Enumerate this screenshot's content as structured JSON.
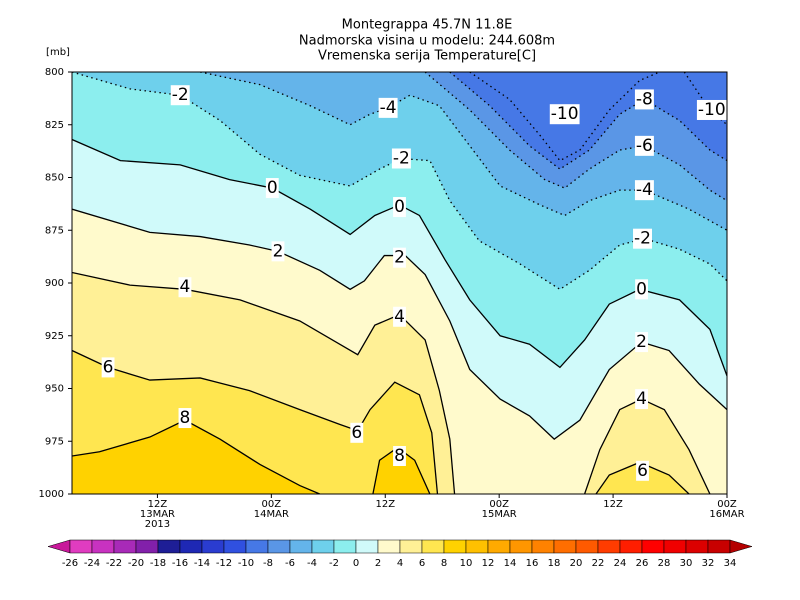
{
  "chart_data": {
    "type": "contour",
    "title": [
      "Montegrappa  45.7N 11.8E",
      "Nadmorska visina u modelu: 244.608m",
      "Vremenska serija Temperature[C]"
    ],
    "y_label": "[mb]",
    "xlim": [
      3,
      72
    ],
    "xticks": [
      {
        "value": 12,
        "label": [
          "12Z",
          "13MAR",
          "2013"
        ]
      },
      {
        "value": 24,
        "label": [
          "00Z",
          "14MAR"
        ]
      },
      {
        "value": 36,
        "label": [
          "12Z"
        ]
      },
      {
        "value": 48,
        "label": [
          "00Z",
          "15MAR"
        ]
      },
      {
        "value": 60,
        "label": [
          "12Z"
        ]
      },
      {
        "value": 72,
        "label": [
          "00Z",
          "16MAR"
        ]
      }
    ],
    "ylim": [
      1000,
      800
    ],
    "yticks": [
      800,
      825,
      850,
      875,
      900,
      925,
      950,
      975,
      1000
    ],
    "negative_contours_dotted": true,
    "contours": [
      {
        "level": -10,
        "segments": [
          [
            [
              44.9,
              800
            ],
            [
              49.1,
              813
            ],
            [
              52.3,
              830
            ],
            [
              54.4,
              842
            ],
            [
              56.5,
              837
            ],
            [
              59.6,
              818
            ],
            [
              62.8,
              804
            ],
            [
              64.9,
              800
            ]
          ],
          [
            [
              67.5,
              800
            ],
            [
              70.2,
              818
            ],
            [
              72,
              825
            ]
          ]
        ],
        "labels": [
          [
            54.9,
            820
          ],
          [
            70.4,
            818
          ]
        ]
      },
      {
        "level": -8,
        "segments": [
          [
            [
              42.8,
              800
            ],
            [
              47,
              816
            ],
            [
              51.2,
              835
            ],
            [
              54.4,
              846
            ],
            [
              57.5,
              837
            ],
            [
              60.7,
              820
            ],
            [
              63.3,
              813
            ],
            [
              67,
              823
            ],
            [
              70.2,
              837
            ],
            [
              72,
              842
            ]
          ]
        ],
        "labels": [
          [
            63.3,
            813
          ]
        ]
      },
      {
        "level": -6,
        "segments": [
          [
            [
              40.2,
              800
            ],
            [
              44.9,
              818
            ],
            [
              49.1,
              837
            ],
            [
              52.8,
              851
            ],
            [
              54.9,
              855
            ],
            [
              57.5,
              846
            ],
            [
              60.7,
              837
            ],
            [
              63.3,
              835
            ],
            [
              67,
              844
            ],
            [
              70.2,
              856
            ],
            [
              72,
              861
            ]
          ]
        ],
        "labels": [
          [
            63.3,
            835
          ]
        ]
      },
      {
        "level": -4,
        "segments": [
          [
            [
              16.5,
              800
            ],
            [
              22.8,
              806
            ],
            [
              28.1,
              816
            ],
            [
              32.3,
              825
            ],
            [
              34.4,
              820
            ],
            [
              36.3,
              817
            ],
            [
              38.6,
              811
            ],
            [
              41.7,
              816
            ],
            [
              44.9,
              835
            ],
            [
              48.1,
              854
            ],
            [
              52.3,
              863
            ],
            [
              54.9,
              868
            ],
            [
              57.5,
              861
            ],
            [
              60.7,
              856
            ],
            [
              63.3,
              856
            ],
            [
              68,
              865
            ],
            [
              72,
              875
            ]
          ]
        ],
        "labels": [
          [
            36.3,
            817
          ],
          [
            63.3,
            856
          ]
        ]
      },
      {
        "level": -2,
        "segments": [
          [
            [
              3,
              800
            ],
            [
              9.1,
              808
            ],
            [
              14.4,
              811
            ],
            [
              18.6,
              823
            ],
            [
              22.8,
              839
            ],
            [
              27,
              849
            ],
            [
              32.3,
              854
            ],
            [
              35.4,
              846
            ],
            [
              37.7,
              841
            ],
            [
              40.7,
              842
            ],
            [
              42.8,
              861
            ],
            [
              45.9,
              880
            ],
            [
              50.2,
              891
            ],
            [
              54.4,
              903
            ],
            [
              57.5,
              894
            ],
            [
              60.7,
              882
            ],
            [
              63.3,
              879
            ],
            [
              67,
              884
            ],
            [
              70.2,
              891
            ],
            [
              72,
              899
            ]
          ]
        ],
        "labels": [
          [
            14.4,
            811
          ],
          [
            37.7,
            841
          ],
          [
            63.1,
            879
          ]
        ]
      },
      {
        "level": 0,
        "segments": [
          [
            [
              3,
              832
            ],
            [
              8.1,
              842
            ],
            [
              14.4,
              844
            ],
            [
              19.6,
              851
            ],
            [
              24.1,
              855
            ],
            [
              28.1,
              865
            ],
            [
              32.3,
              877
            ],
            [
              34.9,
              868
            ],
            [
              37.5,
              863
            ],
            [
              39.6,
              868
            ],
            [
              42.3,
              889
            ],
            [
              44.9,
              908
            ],
            [
              48.1,
              925
            ],
            [
              51.2,
              929
            ],
            [
              54.4,
              940
            ],
            [
              57,
              927
            ],
            [
              59.6,
              910
            ],
            [
              62.8,
              903
            ],
            [
              67,
              908
            ],
            [
              70.2,
              922
            ],
            [
              72,
              944
            ]
          ]
        ],
        "labels": [
          [
            24.1,
            855
          ],
          [
            37.5,
            864
          ],
          [
            63,
            903
          ]
        ]
      },
      {
        "level": 2,
        "segments": [
          [
            [
              3,
              865
            ],
            [
              11.2,
              876
            ],
            [
              16.5,
              878
            ],
            [
              21.7,
              882
            ],
            [
              24.7,
              885
            ],
            [
              29.1,
              894
            ],
            [
              32.3,
              903
            ],
            [
              33.8,
              899
            ],
            [
              35.9,
              887
            ],
            [
              38.1,
              887
            ],
            [
              40.2,
              896
            ],
            [
              42.8,
              918
            ],
            [
              44.9,
              941
            ],
            [
              48.1,
              955
            ],
            [
              51.2,
              963
            ],
            [
              53.8,
              974
            ],
            [
              56.5,
              965
            ],
            [
              59.6,
              941
            ],
            [
              63,
              928
            ],
            [
              65.9,
              932
            ],
            [
              69.1,
              948
            ],
            [
              72,
              960
            ]
          ]
        ],
        "labels": [
          [
            24.7,
            885
          ],
          [
            37.5,
            888
          ],
          [
            63,
            928
          ]
        ]
      },
      {
        "level": 4,
        "segments": [
          [
            [
              3,
              895
            ],
            [
              9.1,
              901
            ],
            [
              14.9,
              903
            ],
            [
              20.7,
              908
            ],
            [
              27,
              918
            ],
            [
              31.2,
              929
            ],
            [
              33.1,
              934
            ],
            [
              34.9,
              920
            ],
            [
              37.5,
              915
            ],
            [
              40.2,
              927
            ],
            [
              41.7,
              951
            ],
            [
              42.8,
              974
            ],
            [
              43.3,
              1000
            ]
          ],
          [
            [
              57,
              1000
            ],
            [
              58.6,
              979
            ],
            [
              60.7,
              960
            ],
            [
              63,
              955
            ],
            [
              65.4,
              960
            ],
            [
              68,
              979
            ],
            [
              70.2,
              1000
            ]
          ]
        ],
        "labels": [
          [
            14.9,
            902
          ],
          [
            37.5,
            916
          ],
          [
            63,
            955
          ]
        ]
      },
      {
        "level": 6,
        "segments": [
          [
            [
              3,
              932
            ],
            [
              6.8,
              940
            ],
            [
              11.2,
              946
            ],
            [
              16.5,
              945
            ],
            [
              21.7,
              951
            ],
            [
              27,
              960
            ],
            [
              31.2,
              967
            ],
            [
              33.1,
              970
            ],
            [
              34.4,
              960
            ],
            [
              37,
              947
            ],
            [
              39.6,
              953
            ],
            [
              40.9,
              971
            ],
            [
              41.5,
              1000
            ]
          ],
          [
            [
              58.2,
              1000
            ],
            [
              59.6,
              991
            ],
            [
              62.8,
              985
            ],
            [
              65.9,
              991
            ],
            [
              68,
              1000
            ]
          ]
        ],
        "labels": [
          [
            6.8,
            940
          ],
          [
            33,
            971
          ],
          [
            63.1,
            989
          ]
        ]
      },
      {
        "level": 8,
        "segments": [
          [
            [
              3,
              982
            ],
            [
              5.9,
              980
            ],
            [
              11.2,
              973
            ],
            [
              14.9,
              965
            ],
            [
              18.6,
              974
            ],
            [
              22.8,
              986
            ],
            [
              27,
              996
            ],
            [
              29.1,
              1000
            ]
          ],
          [
            [
              34.7,
              1000
            ],
            [
              35.4,
              984
            ],
            [
              37.3,
              978
            ],
            [
              39.1,
              984
            ],
            [
              40.7,
              1000
            ]
          ]
        ],
        "labels": [
          [
            14.9,
            964
          ],
          [
            37.5,
            982
          ]
        ]
      }
    ],
    "colorbar": {
      "levels": [
        -26,
        -24,
        -22,
        -20,
        -18,
        -16,
        -14,
        -12,
        -10,
        -8,
        -6,
        -4,
        -2,
        0,
        2,
        4,
        6,
        8,
        10,
        12,
        14,
        16,
        18,
        20,
        22,
        24,
        26,
        28,
        30,
        32,
        34
      ],
      "colors": [
        "#c8189a",
        "#e03cc0",
        "#c832c0",
        "#a82ab8",
        "#8220aa",
        "#1e1e96",
        "#1e28b4",
        "#2a3cd0",
        "#3050e0",
        "#4678e6",
        "#5a96e6",
        "#64b4ea",
        "#6ed0ec",
        "#8ceeee",
        "#d0fafa",
        "#fffacc",
        "#fff096",
        "#ffe650",
        "#ffd200",
        "#ffc000",
        "#ffaa00",
        "#ff9600",
        "#ff8200",
        "#ff6e00",
        "#ff5a00",
        "#ff3c00",
        "#ff1e00",
        "#ff0000",
        "#f00000",
        "#dc0000",
        "#c80000",
        "#b40000"
      ]
    }
  }
}
